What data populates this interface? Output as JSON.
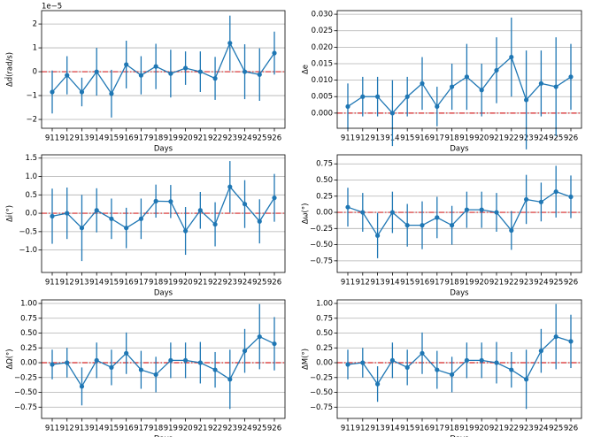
{
  "chart_data": [
    {
      "type": "errorbar",
      "ylabel": "Δḋ(rad/s)",
      "xlabel": "Days",
      "offset_label": "1e−5",
      "color": "#1f77b4",
      "ref_line": {
        "value": 0,
        "color": "#d62728"
      },
      "grid": "y",
      "categories": [
        "911",
        "912",
        "913",
        "914",
        "915",
        "916",
        "917",
        "918",
        "919",
        "920",
        "921",
        "922",
        "923",
        "924",
        "925",
        "926"
      ],
      "values": [
        -0.85,
        -0.15,
        -0.85,
        0,
        -0.92,
        0.3,
        -0.15,
        0.22,
        -0.08,
        0.15,
        0,
        -0.28,
        1.2,
        0,
        -0.12,
        0.78
      ],
      "errors": [
        0.9,
        0.8,
        0.6,
        1.0,
        1.0,
        1.0,
        0.8,
        0.95,
        1.0,
        0.7,
        0.85,
        0.9,
        1.15,
        1.15,
        1.1,
        0.9
      ],
      "ylim": [
        -2.37,
        2.56
      ],
      "yticks": [
        {
          "value": -2,
          "label": "−2"
        },
        {
          "value": -1,
          "label": "−1"
        },
        0,
        1,
        2
      ]
    },
    {
      "type": "errorbar",
      "ylabel": "Δe",
      "xlabel": "Days",
      "color": "#1f77b4",
      "ref_line": {
        "value": 0,
        "color": "#d62728"
      },
      "grid": "y",
      "categories": [
        "911",
        "912",
        "913",
        "914",
        "915",
        "916",
        "917",
        "918",
        "919",
        "920",
        "921",
        "922",
        "923",
        "924",
        "925",
        "926"
      ],
      "values": [
        0.002,
        0.005,
        0.005,
        0.0,
        0.005,
        0.009,
        0.002,
        0.008,
        0.011,
        0.007,
        0.013,
        0.017,
        0.004,
        0.009,
        0.008,
        0.011
      ],
      "errors": [
        0.007,
        0.006,
        0.006,
        0.01,
        0.006,
        0.008,
        0.006,
        0.007,
        0.01,
        0.008,
        0.01,
        0.012,
        0.015,
        0.01,
        0.015,
        0.01
      ],
      "ylim": [
        -0.0046,
        0.0311
      ],
      "yticks": [
        {
          "value": 0,
          "label": "0.000"
        },
        {
          "value": 0.005,
          "label": "0.005"
        },
        {
          "value": 0.01,
          "label": "0.010"
        },
        {
          "value": 0.015,
          "label": "0.015"
        },
        {
          "value": 0.02,
          "label": "0.020"
        },
        {
          "value": 0.025,
          "label": "0.025"
        },
        {
          "value": 0.03,
          "label": "0.030"
        }
      ]
    },
    {
      "type": "errorbar",
      "ylabel": "Δi(°)",
      "xlabel": "Days",
      "color": "#1f77b4",
      "ref_line": {
        "value": 0,
        "color": "#d62728"
      },
      "grid": "y",
      "categories": [
        "911",
        "912",
        "913",
        "914",
        "915",
        "916",
        "917",
        "918",
        "919",
        "920",
        "921",
        "922",
        "923",
        "924",
        "925",
        "926"
      ],
      "values": [
        -0.08,
        0.0,
        -0.4,
        0.08,
        -0.15,
        -0.4,
        -0.15,
        0.33,
        0.32,
        -0.48,
        0.08,
        -0.3,
        0.72,
        0.25,
        -0.22,
        0.42
      ],
      "errors": [
        0.75,
        0.7,
        0.9,
        0.6,
        0.55,
        0.55,
        0.55,
        0.45,
        0.45,
        0.65,
        0.5,
        0.6,
        0.7,
        0.65,
        0.6,
        0.65
      ],
      "ylim": [
        -1.61,
        1.59
      ],
      "yticks": [
        {
          "value": -1,
          "label": "−1.0"
        },
        {
          "value": -0.5,
          "label": "−0.5"
        },
        {
          "value": 0,
          "label": "0.0"
        },
        0.5,
        {
          "value": 1,
          "label": "1.0"
        },
        1.5
      ]
    },
    {
      "type": "errorbar",
      "ylabel": "Δω(°)",
      "xlabel": "Days",
      "color": "#1f77b4",
      "ref_line": {
        "value": 0,
        "color": "#d62728"
      },
      "grid": "y",
      "categories": [
        "911",
        "912",
        "913",
        "914",
        "915",
        "916",
        "917",
        "918",
        "919",
        "920",
        "921",
        "922",
        "923",
        "924",
        "925",
        "926"
      ],
      "values": [
        0.08,
        0.0,
        -0.36,
        0.0,
        -0.2,
        -0.2,
        -0.08,
        -0.2,
        0.04,
        0.04,
        0.0,
        -0.28,
        0.2,
        0.16,
        0.32,
        0.24
      ],
      "errors": [
        0.3,
        0.3,
        0.35,
        0.32,
        0.33,
        0.37,
        0.32,
        0.3,
        0.28,
        0.28,
        0.3,
        0.3,
        0.38,
        0.3,
        0.4,
        0.33
      ],
      "ylim": [
        -0.93,
        0.89
      ],
      "yticks": [
        {
          "value": -0.75,
          "label": "−0.75"
        },
        {
          "value": -0.5,
          "label": "−0.50"
        },
        {
          "value": -0.25,
          "label": "−0.25"
        },
        {
          "value": 0,
          "label": "0.00"
        },
        0.25,
        {
          "value": 0.5,
          "label": "0.50"
        },
        0.75
      ]
    },
    {
      "type": "errorbar",
      "ylabel": "ΔΩ(°)",
      "xlabel": "Days",
      "color": "#1f77b4",
      "ref_line": {
        "value": 0,
        "color": "#d62728"
      },
      "grid": "y",
      "categories": [
        "911",
        "912",
        "913",
        "914",
        "915",
        "916",
        "917",
        "918",
        "919",
        "920",
        "921",
        "922",
        "923",
        "924",
        "925",
        "926"
      ],
      "values": [
        -0.03,
        0.0,
        -0.4,
        0.04,
        -0.08,
        0.16,
        -0.12,
        -0.2,
        0.04,
        0.04,
        0.0,
        -0.12,
        -0.28,
        0.2,
        0.44,
        0.32
      ],
      "errors": [
        0.25,
        0.25,
        0.32,
        0.3,
        0.3,
        0.35,
        0.32,
        0.3,
        0.3,
        0.3,
        0.35,
        0.3,
        0.5,
        0.37,
        0.55,
        0.45
      ],
      "ylim": [
        -0.94,
        1.06
      ],
      "yticks": [
        {
          "value": -0.75,
          "label": "−0.75"
        },
        {
          "value": -0.5,
          "label": "−0.50"
        },
        {
          "value": -0.25,
          "label": "−0.25"
        },
        {
          "value": 0,
          "label": "0.00"
        },
        0.25,
        {
          "value": 0.5,
          "label": "0.50"
        },
        0.75,
        {
          "value": 1,
          "label": "1.00"
        }
      ]
    },
    {
      "type": "errorbar",
      "ylabel": "ΔM(°)",
      "xlabel": "Days",
      "color": "#1f77b4",
      "ref_line": {
        "value": 0,
        "color": "#d62728"
      },
      "grid": "y",
      "categories": [
        "911",
        "912",
        "913",
        "914",
        "915",
        "916",
        "917",
        "918",
        "919",
        "920",
        "921",
        "922",
        "923",
        "924",
        "925",
        "926"
      ],
      "values": [
        -0.03,
        0.0,
        -0.36,
        0.04,
        -0.08,
        0.16,
        -0.12,
        -0.2,
        0.04,
        0.04,
        0.0,
        -0.12,
        -0.28,
        0.2,
        0.44,
        0.36
      ],
      "errors": [
        0.25,
        0.25,
        0.3,
        0.3,
        0.3,
        0.35,
        0.32,
        0.3,
        0.3,
        0.3,
        0.35,
        0.3,
        0.5,
        0.37,
        0.55,
        0.45
      ],
      "ylim": [
        -0.94,
        1.06
      ],
      "yticks": [
        {
          "value": -0.75,
          "label": "−0.75"
        },
        {
          "value": -0.5,
          "label": "−0.50"
        },
        {
          "value": -0.25,
          "label": "−0.25"
        },
        {
          "value": 0,
          "label": "0.00"
        },
        0.25,
        {
          "value": 0.5,
          "label": "0.50"
        },
        0.75,
        {
          "value": 1,
          "label": "1.00"
        }
      ]
    }
  ]
}
